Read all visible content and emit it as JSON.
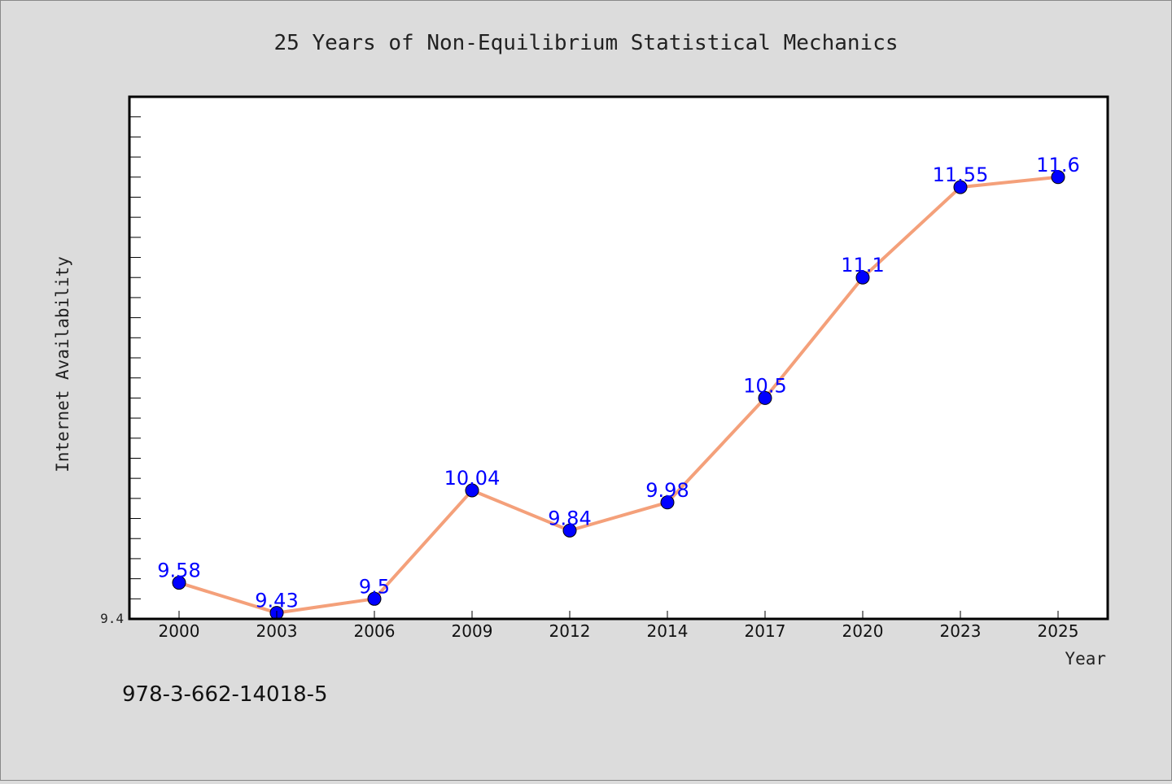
{
  "chart_data": {
    "type": "line",
    "title": "25 Years of Non-Equilibrium Statistical Mechanics",
    "xlabel": "Year",
    "ylabel": "Internet Availability",
    "categories": [
      "2000",
      "2003",
      "2006",
      "2009",
      "2012",
      "2014",
      "2017",
      "2020",
      "2023",
      "2025"
    ],
    "series": [
      {
        "values": [
          9.58,
          9.43,
          9.5,
          10.04,
          9.84,
          9.98,
          10.5,
          11.1,
          11.55,
          11.6
        ],
        "labels": [
          "9.58",
          "9.43",
          "9.5",
          "10.04",
          "9.84",
          "9.98",
          "10.5",
          "11.1",
          "11.55",
          "11.6"
        ]
      }
    ],
    "ylim": [
      9.4,
      12.0
    ],
    "ylim_min_label": "9.4",
    "grid": false,
    "colors": {
      "line": "#f4a07a",
      "marker": "#0000ff",
      "data_label": "#0000ff",
      "background": "#dcdcdc",
      "plot_background": "#ffffff"
    }
  },
  "footer": {
    "isbn": "978-3-662-14018-5"
  }
}
